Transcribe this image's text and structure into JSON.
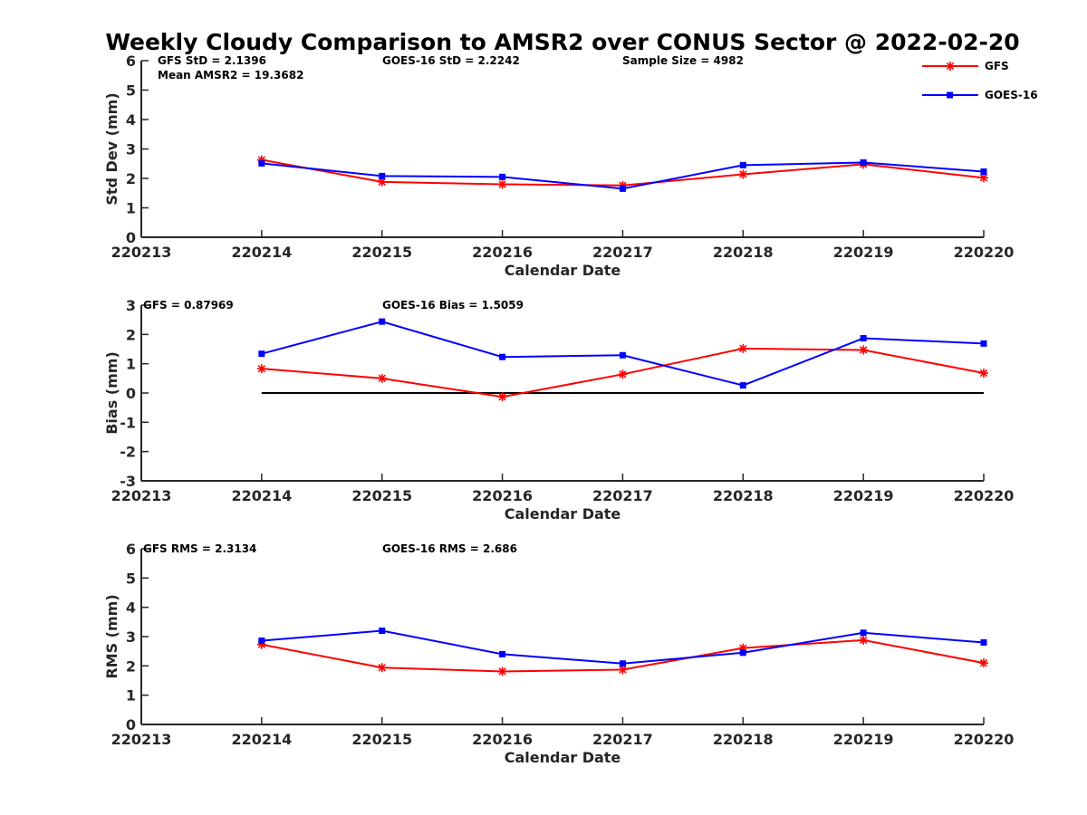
{
  "title": "Weekly Cloudy Comparison to AMSR2 over CONUS Sector @ 2022-02-20",
  "legend": [
    {
      "name": "GFS",
      "color": "#ff0000",
      "marker": "asterisk"
    },
    {
      "name": "GOES-16",
      "color": "#0000ff",
      "marker": "square"
    }
  ],
  "chart_data": [
    {
      "type": "line",
      "x": [
        "220213",
        "220214",
        "220215",
        "220216",
        "220217",
        "220218",
        "220219",
        "220220"
      ],
      "xlabel": "Calendar Date",
      "ylabel": "Std Dev (mm)",
      "ylim": [
        0,
        6
      ],
      "yticks": [
        "0",
        "1",
        "2",
        "3",
        "4",
        "5",
        "6"
      ],
      "annotations": [
        "GFS StD = 2.1396",
        "Mean AMSR2 = 19.3682",
        "GOES-16 StD = 2.2242",
        "Sample Size = 4982"
      ],
      "series": [
        {
          "name": "GFS",
          "color": "#ff0000",
          "x": [
            "220214",
            "220215",
            "220216",
            "220217",
            "220218",
            "220219",
            "220220"
          ],
          "values": [
            2.63,
            1.88,
            1.8,
            1.76,
            2.14,
            2.48,
            2.02
          ]
        },
        {
          "name": "GOES-16",
          "color": "#0000ff",
          "x": [
            "220214",
            "220215",
            "220216",
            "220217",
            "220218",
            "220219",
            "220220"
          ],
          "values": [
            2.51,
            2.08,
            2.05,
            1.65,
            2.45,
            2.54,
            2.23
          ]
        }
      ]
    },
    {
      "type": "line",
      "x": [
        "220213",
        "220214",
        "220215",
        "220216",
        "220217",
        "220218",
        "220219",
        "220220"
      ],
      "xlabel": "Calendar Date",
      "ylabel": "Bias (mm)",
      "ylim": [
        -3,
        3
      ],
      "yticks": [
        "-3",
        "-2",
        "-1",
        "0",
        "1",
        "2",
        "3"
      ],
      "zero_line": true,
      "annotations": [
        "GFS = 0.87969",
        "GOES-16 Bias  = 1.5059"
      ],
      "series": [
        {
          "name": "GFS",
          "color": "#ff0000",
          "x": [
            "220214",
            "220215",
            "220216",
            "220217",
            "220218",
            "220219",
            "220220"
          ],
          "values": [
            0.83,
            0.5,
            -0.13,
            0.64,
            1.52,
            1.47,
            0.68
          ]
        },
        {
          "name": "GOES-16",
          "color": "#0000ff",
          "x": [
            "220214",
            "220215",
            "220216",
            "220217",
            "220218",
            "220219",
            "220220"
          ],
          "values": [
            1.34,
            2.44,
            1.23,
            1.29,
            0.26,
            1.87,
            1.69
          ]
        }
      ]
    },
    {
      "type": "line",
      "x": [
        "220213",
        "220214",
        "220215",
        "220216",
        "220217",
        "220218",
        "220219",
        "220220"
      ],
      "xlabel": "Calendar Date",
      "ylabel": "RMS (mm)",
      "ylim": [
        0,
        6
      ],
      "yticks": [
        "0",
        "1",
        "2",
        "3",
        "4",
        "5",
        "6"
      ],
      "annotations": [
        "GFS RMS = 2.3134",
        "GOES-16 RMS = 2.686"
      ],
      "series": [
        {
          "name": "GFS",
          "color": "#ff0000",
          "x": [
            "220214",
            "220215",
            "220216",
            "220217",
            "220218",
            "220219",
            "220220"
          ],
          "values": [
            2.73,
            1.94,
            1.81,
            1.87,
            2.61,
            2.88,
            2.1
          ]
        },
        {
          "name": "GOES-16",
          "color": "#0000ff",
          "x": [
            "220214",
            "220215",
            "220216",
            "220217",
            "220218",
            "220219",
            "220220"
          ],
          "values": [
            2.86,
            3.2,
            2.4,
            2.08,
            2.45,
            3.13,
            2.8
          ]
        }
      ]
    }
  ]
}
